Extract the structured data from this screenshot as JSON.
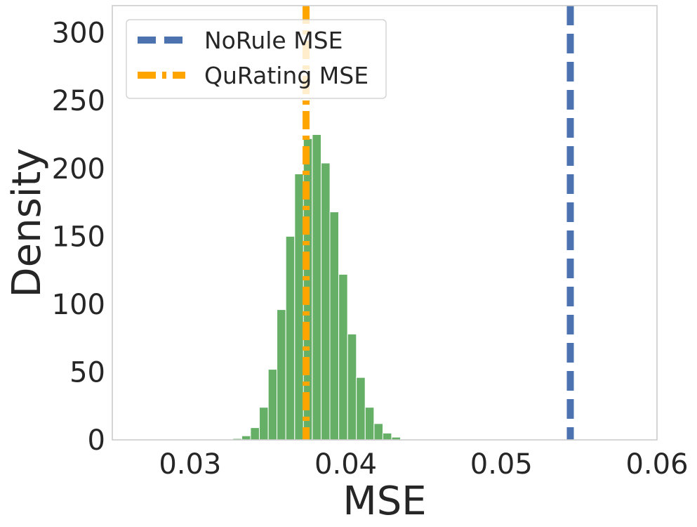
{
  "chart_data": {
    "type": "histogram",
    "xlabel": "MSE",
    "ylabel": "Density",
    "xlim": [
      0.025,
      0.06
    ],
    "ylim": [
      0,
      320
    ],
    "grid": false,
    "legend_placement": "upper-left",
    "x_ticks": [
      0.03,
      0.04,
      0.05,
      0.06
    ],
    "x_tick_labels": [
      "0.03",
      "0.04",
      "0.05",
      "0.06"
    ],
    "y_ticks": [
      0,
      50,
      100,
      150,
      200,
      250,
      300
    ],
    "y_tick_labels": [
      "0",
      "50",
      "100",
      "150",
      "200",
      "250",
      "300"
    ],
    "bar_color": "#59a85a",
    "bin_width": 0.000567,
    "bins": [
      {
        "x": 0.03275,
        "density": 1
      },
      {
        "x": 0.03332,
        "density": 3
      },
      {
        "x": 0.03388,
        "density": 9
      },
      {
        "x": 0.03445,
        "density": 24
      },
      {
        "x": 0.03502,
        "density": 52
      },
      {
        "x": 0.03558,
        "density": 96
      },
      {
        "x": 0.03615,
        "density": 150
      },
      {
        "x": 0.03672,
        "density": 196
      },
      {
        "x": 0.03728,
        "density": 222
      },
      {
        "x": 0.03785,
        "density": 225
      },
      {
        "x": 0.03842,
        "density": 204
      },
      {
        "x": 0.03898,
        "density": 168
      },
      {
        "x": 0.03955,
        "density": 122
      },
      {
        "x": 0.04012,
        "density": 78
      },
      {
        "x": 0.04068,
        "density": 46
      },
      {
        "x": 0.04125,
        "density": 24
      },
      {
        "x": 0.04182,
        "density": 12
      },
      {
        "x": 0.04238,
        "density": 5
      },
      {
        "x": 0.04295,
        "density": 2
      }
    ],
    "vlines": [
      {
        "name": "NoRule MSE",
        "x": 0.05443,
        "color": "#4c72b0",
        "style": "dashed"
      },
      {
        "name": "QuRating MSE",
        "x": 0.03745,
        "color": "#ffa500",
        "style": "dashdot"
      }
    ]
  }
}
